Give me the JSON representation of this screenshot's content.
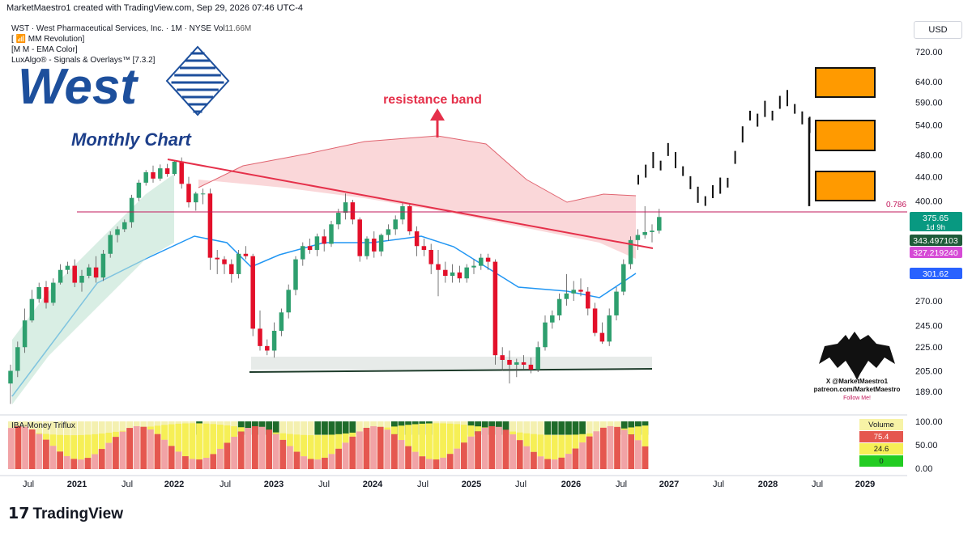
{
  "header": {
    "credit": "MarketMaestro1 created with TradingView.com, Sep 29, 2026 07:46 UTC-4",
    "symbol_line": "WST · West Pharmaceutical Services, Inc. · 1M · NYSE  Vol",
    "volume": "11.66M",
    "indicators": [
      "[ 📶 MM Revolution]",
      "[M M - EMA Color]",
      "LuxAlgo® - Signals & Overlays™ [7.3.2]"
    ],
    "currency": "USD"
  },
  "overlay": {
    "logo_text": "West",
    "subtitle": "Monthly Chart",
    "resistance_label": "resistance band",
    "fib_label": "0.786"
  },
  "price_axis": {
    "ticks": [
      "720.00",
      "640.00",
      "590.00",
      "540.00",
      "480.00",
      "440.00",
      "400.00",
      "270.00",
      "245.00",
      "225.00",
      "205.00",
      "189.00"
    ],
    "badges": [
      {
        "value": "375.65",
        "sub": "1d 9h",
        "color": "#089981"
      },
      {
        "value": "343.497103",
        "color": "#1e5b3a"
      },
      {
        "value": "327.219240",
        "color": "#d64bd6"
      },
      {
        "value": "301.62",
        "color": "#2962ff"
      }
    ]
  },
  "oscillator": {
    "name": "IBA-Money Triflux",
    "ticks": [
      "100.00",
      "50.00",
      "0.00"
    ],
    "legend": [
      {
        "label": "Volume",
        "color": "#f7f3a6"
      },
      {
        "label": "75.4",
        "color": "#e5574f"
      },
      {
        "label": "24.6",
        "color": "#f6ef56"
      },
      {
        "label": "0",
        "color": "#22cc22"
      }
    ]
  },
  "time_axis": {
    "labels": [
      "Jul",
      "2021",
      "Jul",
      "2022",
      "Jul",
      "2023",
      "Jul",
      "2024",
      "Jul",
      "2025",
      "Jul",
      "2026",
      "Jul",
      "2027",
      "Jul",
      "2028",
      "Jul",
      "2029"
    ]
  },
  "watermark": {
    "line1": "X @MarketMaestro1",
    "line2": "patreon.com/MarketMaestro",
    "line3": "Follow Me!"
  },
  "footer": {
    "brand": "TradingView"
  },
  "chart_data": {
    "type": "candlestick",
    "interval": "1M",
    "scale": "log",
    "ylim": [
      180,
      780
    ],
    "x_start": "2020-05",
    "candles": [
      {
        "o": 195,
        "h": 210,
        "l": 180,
        "c": 205
      },
      {
        "o": 205,
        "h": 230,
        "l": 200,
        "c": 225
      },
      {
        "o": 225,
        "h": 262,
        "l": 220,
        "c": 250
      },
      {
        "o": 250,
        "h": 282,
        "l": 248,
        "c": 272
      },
      {
        "o": 272,
        "h": 290,
        "l": 268,
        "c": 285
      },
      {
        "o": 285,
        "h": 292,
        "l": 262,
        "c": 268
      },
      {
        "o": 268,
        "h": 295,
        "l": 265,
        "c": 290
      },
      {
        "o": 290,
        "h": 312,
        "l": 288,
        "c": 305
      },
      {
        "o": 305,
        "h": 315,
        "l": 300,
        "c": 310
      },
      {
        "o": 310,
        "h": 318,
        "l": 285,
        "c": 290
      },
      {
        "o": 290,
        "h": 305,
        "l": 280,
        "c": 298
      },
      {
        "o": 298,
        "h": 312,
        "l": 295,
        "c": 308
      },
      {
        "o": 308,
        "h": 322,
        "l": 290,
        "c": 296
      },
      {
        "o": 296,
        "h": 330,
        "l": 292,
        "c": 325
      },
      {
        "o": 325,
        "h": 355,
        "l": 320,
        "c": 350
      },
      {
        "o": 350,
        "h": 362,
        "l": 340,
        "c": 358
      },
      {
        "o": 358,
        "h": 372,
        "l": 354,
        "c": 368
      },
      {
        "o": 368,
        "h": 410,
        "l": 360,
        "c": 405
      },
      {
        "o": 405,
        "h": 435,
        "l": 400,
        "c": 430
      },
      {
        "o": 430,
        "h": 452,
        "l": 425,
        "c": 448
      },
      {
        "o": 448,
        "h": 460,
        "l": 430,
        "c": 437
      },
      {
        "o": 437,
        "h": 462,
        "l": 433,
        "c": 455
      },
      {
        "o": 455,
        "h": 463,
        "l": 440,
        "c": 445
      },
      {
        "o": 445,
        "h": 470,
        "l": 442,
        "c": 467
      },
      {
        "o": 467,
        "h": 475,
        "l": 420,
        "c": 428
      },
      {
        "o": 428,
        "h": 440,
        "l": 390,
        "c": 398
      },
      {
        "o": 398,
        "h": 415,
        "l": 385,
        "c": 412
      },
      {
        "o": 412,
        "h": 420,
        "l": 395,
        "c": 412
      },
      {
        "o": 412,
        "h": 420,
        "l": 305,
        "c": 320
      },
      {
        "o": 320,
        "h": 330,
        "l": 300,
        "c": 318
      },
      {
        "o": 318,
        "h": 322,
        "l": 300,
        "c": 312
      },
      {
        "o": 312,
        "h": 318,
        "l": 290,
        "c": 300
      },
      {
        "o": 300,
        "h": 330,
        "l": 295,
        "c": 325
      },
      {
        "o": 325,
        "h": 335,
        "l": 318,
        "c": 322
      },
      {
        "o": 322,
        "h": 325,
        "l": 235,
        "c": 242
      },
      {
        "o": 242,
        "h": 260,
        "l": 222,
        "c": 226
      },
      {
        "o": 226,
        "h": 232,
        "l": 218,
        "c": 222
      },
      {
        "o": 222,
        "h": 248,
        "l": 216,
        "c": 240
      },
      {
        "o": 240,
        "h": 262,
        "l": 235,
        "c": 258
      },
      {
        "o": 258,
        "h": 288,
        "l": 252,
        "c": 282
      },
      {
        "o": 282,
        "h": 322,
        "l": 276,
        "c": 318
      },
      {
        "o": 318,
        "h": 340,
        "l": 310,
        "c": 335
      },
      {
        "o": 335,
        "h": 345,
        "l": 325,
        "c": 330
      },
      {
        "o": 330,
        "h": 352,
        "l": 322,
        "c": 348
      },
      {
        "o": 348,
        "h": 358,
        "l": 328,
        "c": 338
      },
      {
        "o": 338,
        "h": 370,
        "l": 334,
        "c": 365
      },
      {
        "o": 365,
        "h": 388,
        "l": 358,
        "c": 382
      },
      {
        "o": 382,
        "h": 412,
        "l": 372,
        "c": 398
      },
      {
        "o": 398,
        "h": 402,
        "l": 365,
        "c": 372
      },
      {
        "o": 372,
        "h": 375,
        "l": 315,
        "c": 322
      },
      {
        "o": 322,
        "h": 348,
        "l": 318,
        "c": 345
      },
      {
        "o": 345,
        "h": 355,
        "l": 320,
        "c": 328
      },
      {
        "o": 328,
        "h": 352,
        "l": 322,
        "c": 350
      },
      {
        "o": 350,
        "h": 365,
        "l": 342,
        "c": 358
      },
      {
        "o": 358,
        "h": 378,
        "l": 350,
        "c": 372
      },
      {
        "o": 372,
        "h": 398,
        "l": 365,
        "c": 392
      },
      {
        "o": 392,
        "h": 395,
        "l": 350,
        "c": 355
      },
      {
        "o": 355,
        "h": 362,
        "l": 322,
        "c": 335
      },
      {
        "o": 335,
        "h": 345,
        "l": 322,
        "c": 330
      },
      {
        "o": 330,
        "h": 338,
        "l": 300,
        "c": 312
      },
      {
        "o": 312,
        "h": 330,
        "l": 275,
        "c": 305
      },
      {
        "o": 305,
        "h": 315,
        "l": 290,
        "c": 298
      },
      {
        "o": 298,
        "h": 312,
        "l": 290,
        "c": 302
      },
      {
        "o": 302,
        "h": 310,
        "l": 290,
        "c": 295
      },
      {
        "o": 295,
        "h": 312,
        "l": 290,
        "c": 308
      },
      {
        "o": 308,
        "h": 318,
        "l": 300,
        "c": 310
      },
      {
        "o": 310,
        "h": 325,
        "l": 305,
        "c": 320
      },
      {
        "o": 320,
        "h": 325,
        "l": 305,
        "c": 315
      },
      {
        "o": 315,
        "h": 318,
        "l": 210,
        "c": 218
      },
      {
        "o": 218,
        "h": 225,
        "l": 205,
        "c": 214
      },
      {
        "o": 214,
        "h": 222,
        "l": 195,
        "c": 210
      },
      {
        "o": 210,
        "h": 215,
        "l": 200,
        "c": 212
      },
      {
        "o": 212,
        "h": 218,
        "l": 206,
        "c": 210
      },
      {
        "o": 210,
        "h": 216,
        "l": 203,
        "c": 206
      },
      {
        "o": 206,
        "h": 230,
        "l": 204,
        "c": 225
      },
      {
        "o": 225,
        "h": 255,
        "l": 222,
        "c": 248
      },
      {
        "o": 248,
        "h": 260,
        "l": 242,
        "c": 255
      },
      {
        "o": 255,
        "h": 278,
        "l": 250,
        "c": 272
      },
      {
        "o": 272,
        "h": 300,
        "l": 265,
        "c": 278
      },
      {
        "o": 278,
        "h": 292,
        "l": 270,
        "c": 282
      },
      {
        "o": 282,
        "h": 295,
        "l": 275,
        "c": 280
      },
      {
        "o": 280,
        "h": 285,
        "l": 255,
        "c": 262
      },
      {
        "o": 262,
        "h": 268,
        "l": 235,
        "c": 238
      },
      {
        "o": 238,
        "h": 248,
        "l": 228,
        "c": 230
      },
      {
        "o": 230,
        "h": 262,
        "l": 226,
        "c": 255
      },
      {
        "o": 255,
        "h": 285,
        "l": 250,
        "c": 280
      },
      {
        "o": 280,
        "h": 318,
        "l": 276,
        "c": 312
      },
      {
        "o": 312,
        "h": 348,
        "l": 306,
        "c": 343
      },
      {
        "o": 343,
        "h": 358,
        "l": 330,
        "c": 350
      },
      {
        "o": 350,
        "h": 392,
        "l": 345,
        "c": 354
      },
      {
        "o": 354,
        "h": 365,
        "l": 340,
        "c": 356
      },
      {
        "o": 356,
        "h": 388,
        "l": 352,
        "c": 375.65
      }
    ],
    "projection_prices": [
      435,
      450,
      470,
      460,
      490,
      470,
      450,
      430,
      410,
      400,
      415,
      425,
      430,
      475,
      520,
      560,
      550,
      575,
      560,
      590,
      600,
      575,
      555,
      540
    ]
  }
}
